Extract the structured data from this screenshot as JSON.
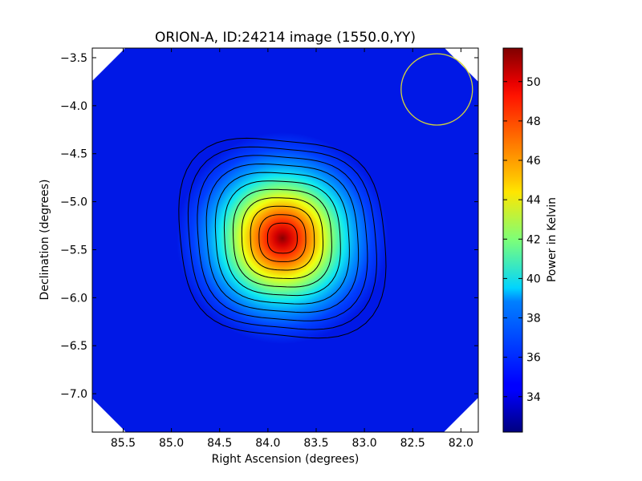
{
  "chart_data": {
    "type": "heatmap",
    "title": "ORION-A, ID:24214 image (1550.0,YY)",
    "xlabel": "Right Ascension (degrees)",
    "ylabel": "Declination (degrees)",
    "colorbar_label": "Power in Kelvin",
    "xlim": [
      85.82,
      81.82
    ],
    "ylim": [
      -7.4,
      -3.4
    ],
    "x_ticks": [
      85.5,
      85.0,
      84.5,
      84.0,
      83.5,
      83.0,
      82.5,
      82.0
    ],
    "x_tick_labels": [
      "85.5",
      "85.0",
      "84.5",
      "84.0",
      "83.5",
      "83.0",
      "82.5",
      "82.0"
    ],
    "y_ticks": [
      -3.5,
      -4.0,
      -4.5,
      -5.0,
      -5.5,
      -6.0,
      -6.5,
      -7.0
    ],
    "y_tick_labels": [
      "−3.5",
      "−4.0",
      "−4.5",
      "−5.0",
      "−5.5",
      "−6.0",
      "−6.5",
      "−7.0"
    ],
    "colorbar_range": [
      32.2,
      51.7
    ],
    "colorbar_ticks": [
      34,
      36,
      38,
      40,
      42,
      44,
      46,
      48,
      50
    ],
    "colorbar_tick_labels": [
      "34",
      "36",
      "38",
      "40",
      "42",
      "44",
      "46",
      "48",
      "50"
    ],
    "colormap": "jet",
    "background_level": 33.3,
    "peak": {
      "ra": 83.85,
      "dec": -5.38,
      "value": 51.7
    },
    "contour_levels": [
      34.6,
      36.9,
      38.5,
      40.0,
      41.5,
      43.0,
      44.5,
      46.0,
      47.5,
      49.0,
      50.5
    ],
    "beam_circle": {
      "ra": 82.25,
      "dec": -3.83,
      "radius_deg": 0.37,
      "color": "#d4d43a"
    }
  }
}
